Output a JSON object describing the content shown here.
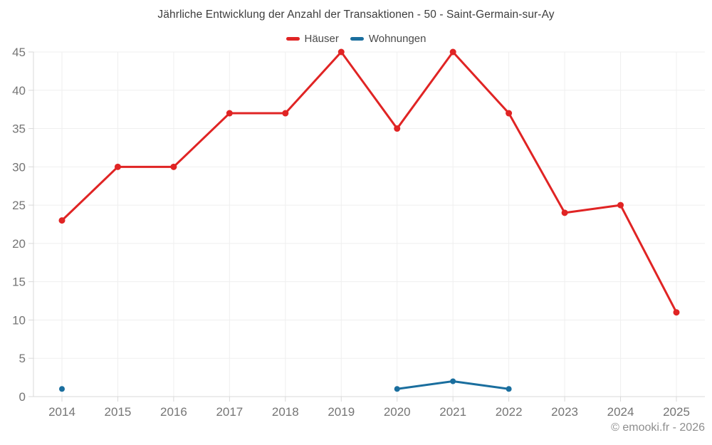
{
  "header": {
    "title": "Jährliche Entwicklung der Anzahl der Transaktionen - 50 - Saint-Germain-sur-Ay"
  },
  "footer": {
    "copyright": "© emooki.fr - 2026"
  },
  "chart_data": {
    "type": "line",
    "title": "Jährliche Entwicklung der Anzahl der Transaktionen - 50 - Saint-Germain-sur-Ay",
    "categories": [
      "2014",
      "2015",
      "2016",
      "2017",
      "2018",
      "2019",
      "2020",
      "2021",
      "2022",
      "2023",
      "2024",
      "2025"
    ],
    "series": [
      {
        "name": "Häuser",
        "color": "#e02424",
        "values": [
          23,
          30,
          30,
          37,
          37,
          45,
          35,
          45,
          37,
          24,
          25,
          11
        ]
      },
      {
        "name": "Wohnungen",
        "color": "#1a6e9e",
        "values": [
          1,
          null,
          null,
          null,
          null,
          null,
          1,
          2,
          1,
          null,
          null,
          null
        ]
      }
    ],
    "ylim": [
      0,
      45
    ],
    "yticks": [
      0,
      5,
      10,
      15,
      20,
      25,
      30,
      35,
      40,
      45
    ],
    "grid": true,
    "legend_position": "top",
    "colors": {
      "grid": "#efefef",
      "axis": "#d9d9d9",
      "tick_label": "#757575",
      "title": "#3d3d3d"
    }
  }
}
